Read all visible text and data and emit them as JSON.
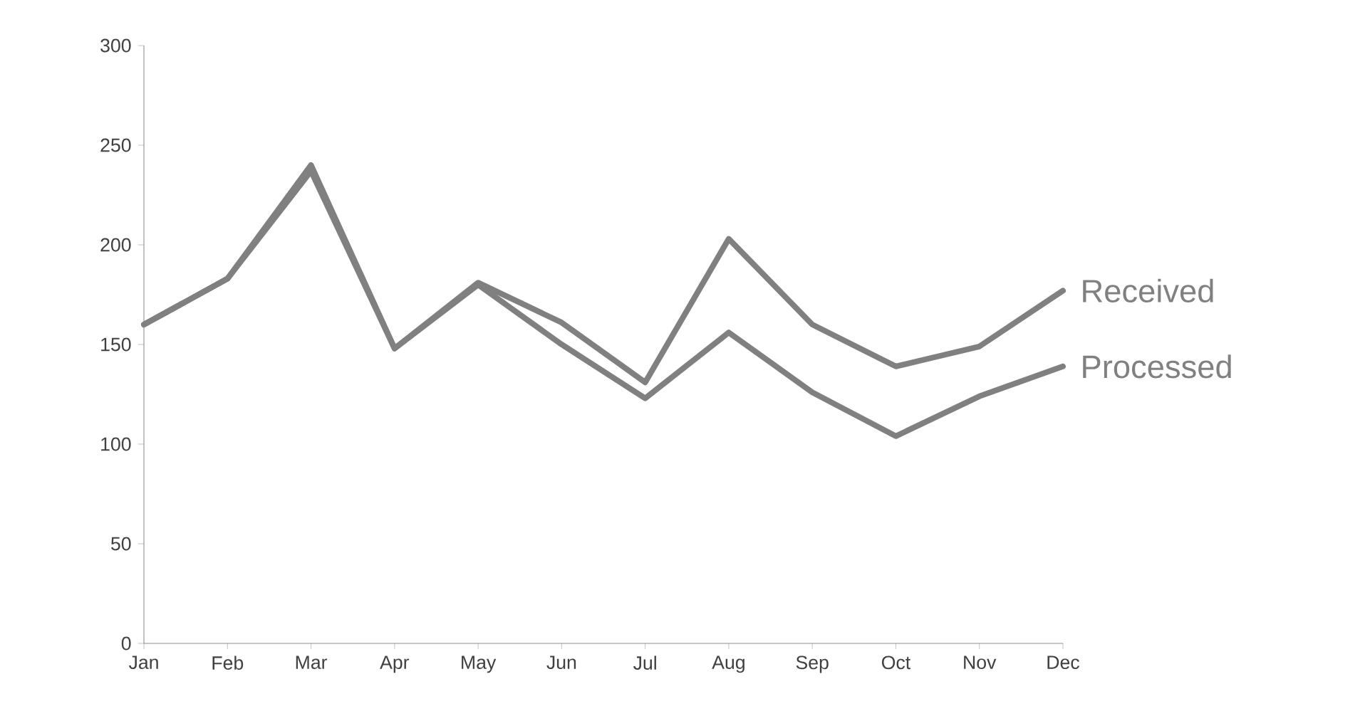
{
  "chart_data": {
    "type": "line",
    "categories": [
      "Jan",
      "Feb",
      "Mar",
      "Apr",
      "May",
      "Jun",
      "Jul",
      "Aug",
      "Sep",
      "Oct",
      "Nov",
      "Dec"
    ],
    "series": [
      {
        "name": "Received",
        "color": "#808080",
        "values": [
          160,
          183,
          240,
          148,
          181,
          161,
          131,
          203,
          160,
          139,
          149,
          177
        ]
      },
      {
        "name": "Processed",
        "color": "#808080",
        "values": [
          160,
          183,
          237,
          148,
          180,
          150,
          123,
          156,
          126,
          104,
          124,
          139
        ]
      }
    ],
    "ylim": [
      0,
      300
    ],
    "yticks": [
      0,
      50,
      100,
      150,
      200,
      250,
      300
    ],
    "grid": false,
    "legend": false,
    "marker": "none",
    "line_style": "solid"
  }
}
